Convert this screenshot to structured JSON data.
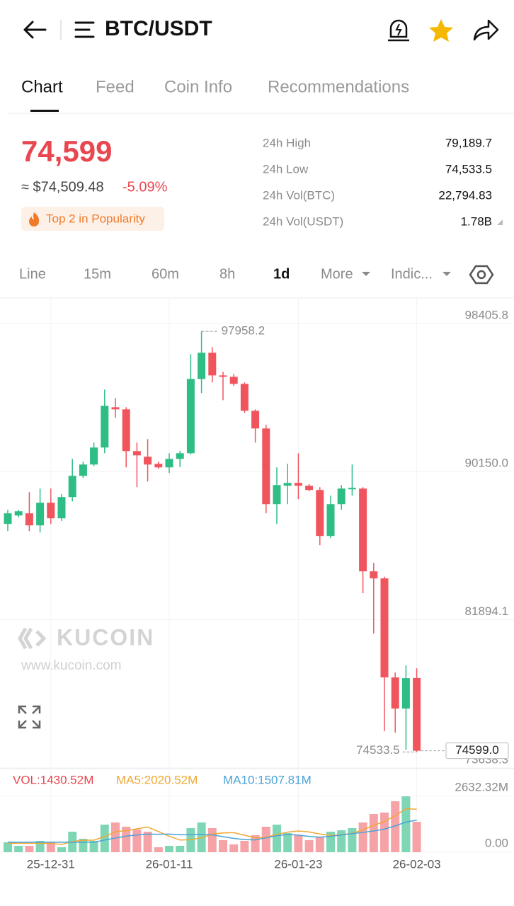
{
  "header": {
    "pair": "BTC/USDT"
  },
  "tabs": [
    "Chart",
    "Feed",
    "Coin Info",
    "Recommendations"
  ],
  "ticker": {
    "price": "74,599",
    "usd": "≈ $74,509.48",
    "change": "-5.09%",
    "badge": "Top 2 in Popularity",
    "stats": [
      {
        "label": "24h High",
        "value": "79,189.7"
      },
      {
        "label": "24h Low",
        "value": "74,533.5"
      },
      {
        "label": "24h Vol(BTC)",
        "value": "22,794.83"
      },
      {
        "label": "24h Vol(USDT)",
        "value": "1.78B"
      }
    ]
  },
  "intervals": [
    "Line",
    "15m",
    "60m",
    "8h",
    "1d",
    "More",
    "Indic..."
  ],
  "watermark": {
    "brand": "KUCOIN",
    "url": "www.kucoin.com"
  },
  "chart_data": {
    "type": "candlestick",
    "categories": [
      null,
      null,
      null,
      null,
      "25-12-31",
      null,
      null,
      null,
      null,
      null,
      null,
      null,
      null,
      null,
      null,
      "26-01-11",
      null,
      null,
      null,
      null,
      null,
      null,
      null,
      null,
      null,
      null,
      null,
      "26-01-23",
      null,
      null,
      null,
      null,
      null,
      null,
      null,
      null,
      null,
      null,
      "26-02-03"
    ],
    "open": [
      87232,
      87705,
      87823,
      87154,
      88414,
      87548,
      88730,
      89912,
      90542,
      91488,
      93733,
      93615,
      91291,
      90975,
      90581,
      90384,
      90857,
      91172,
      95309,
      96767,
      95506,
      95428,
      95034,
      93536,
      92551,
      88336,
      89360,
      89518,
      89360,
      89124,
      86563,
      88336,
      89163,
      89202,
      84593,
      84199,
      78683,
      76949,
      78650
    ],
    "high": [
      88020,
      88020,
      89005,
      89202,
      89202,
      88900,
      90857,
      90700,
      91763,
      94718,
      94246,
      93733,
      91763,
      91960,
      90700,
      91172,
      91300,
      96688,
      97958.2,
      97082,
      95703,
      95585,
      95112,
      93615,
      92748,
      90384,
      90581,
      91172,
      89450,
      89281,
      88808,
      89399,
      90542,
      89281,
      85065,
      84300,
      78958,
      79352,
      79189.7
    ],
    "low": [
      86838,
      87600,
      86838,
      86760,
      87232,
      87400,
      88493,
      89800,
      90450,
      91172,
      93142,
      90384,
      89281,
      89596,
      90300,
      90069,
      90400,
      91100,
      94521,
      95112,
      94127,
      94915,
      93418,
      91763,
      87823,
      87232,
      88336,
      88611,
      89050,
      86050,
      86444,
      88020,
      88808,
      83371,
      81125,
      75688,
      75609,
      74650,
      74533.5
    ],
    "close": [
      87823,
      87942,
      87154,
      88414,
      87548,
      88730,
      89912,
      90542,
      91488,
      93812,
      93615,
      91291,
      91054,
      90542,
      90384,
      90857,
      91172,
      95309,
      96767,
      95506,
      95428,
      95034,
      93536,
      92551,
      88336,
      89399,
      89518,
      89360,
      89124,
      86563,
      88336,
      89202,
      89242,
      84593,
      84199,
      78683,
      76949,
      78643,
      74599
    ],
    "up_color": "#2ebd85",
    "down_color": "#f0555e",
    "ylim": [
      73600,
      99700
    ],
    "yticks": [
      98405.8,
      {
        "value": 90150,
        "label": "90150.0"
      },
      81894.1,
      73638.3
    ],
    "last_label": "74599.0",
    "grid": true,
    "volume": {
      "label": "VOL:1430.52M",
      "values": [
        466,
        300,
        300,
        533,
        466,
        233,
        966,
        633,
        533,
        1300,
        1400,
        1200,
        1066,
        966,
        233,
        300,
        300,
        1133,
        1400,
        1133,
        566,
        366,
        533,
        800,
        1200,
        1300,
        900,
        800,
        566,
        733,
        966,
        1033,
        1133,
        1400,
        1800,
        1866,
        2400,
        2632,
        1430.52
      ],
      "ylim": [
        0,
        2632.32
      ],
      "yticks": [
        {
          "value": 2632.32,
          "label": "2632.32M"
        },
        {
          "value": 0,
          "label": "0.00"
        }
      ],
      "up_color": "#7fd6b5",
      "down_color": "#f5a3a7"
    },
    "series": [
      {
        "name": "MA5:2020.52M",
        "color": "#f0a832",
        "values": [
          420,
          420,
          420,
          420,
          413,
          366,
          500,
          566,
          566,
          733,
          966,
          1013,
          1100,
          1186,
          973,
          753,
          573,
          586,
          673,
          853,
          906,
          920,
          800,
          680,
          693,
          840,
          947,
          1000,
          953,
          860,
          793,
          820,
          886,
          1053,
          1266,
          1446,
          1720,
          2050,
          2020.52
        ]
      },
      {
        "name": "MA10:1507.81M",
        "color": "#4aa3d8",
        "values": [
          470,
          470,
          470,
          470,
          470,
          470,
          470,
          470,
          470,
          573,
          666,
          756,
          809,
          853,
          846,
          853,
          820,
          823,
          833,
          816,
          733,
          650,
          596,
          580,
          676,
          776,
          836,
          803,
          746,
          706,
          746,
          813,
          873,
          933,
          1000,
          1086,
          1236,
          1420,
          1507.81
        ]
      }
    ]
  }
}
